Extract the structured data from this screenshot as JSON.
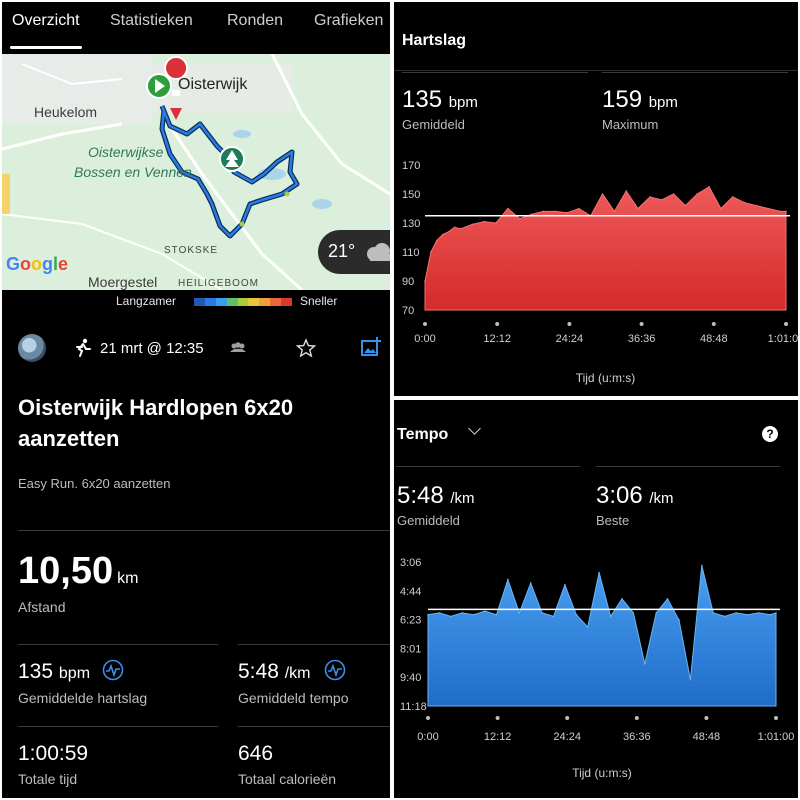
{
  "tabs": [
    {
      "label": "Overzicht"
    },
    {
      "label": "Statistieken"
    },
    {
      "label": "Ronden"
    },
    {
      "label": "Grafieken"
    }
  ],
  "map": {
    "labels": {
      "town1": "Oisterwijk",
      "town2": "Heukelom",
      "park1": "Oisterwijkse",
      "park2": "Bossen en Vennen",
      "town3": "Moergestel",
      "hamlet1": "STOKSKE",
      "hamlet2": "HEILIGEBOOM"
    },
    "google": "Google",
    "temperature": "21°",
    "legend_slow": "Langzamer",
    "legend_fast": "Sneller",
    "legend_colors": [
      "#1f5ab8",
      "#2c7be5",
      "#3aa0e8",
      "#5fc26b",
      "#a8cf3b",
      "#e8c53a",
      "#f0a03a",
      "#ec6a34",
      "#d93a30"
    ]
  },
  "activity": {
    "date": "21 mrt @ 12:35",
    "title": "Oisterwijk Hardlopen 6x20 aanzetten",
    "subtitle": "Easy Run. 6x20 aanzetten",
    "distance_value": "10,50",
    "distance_unit": "km",
    "distance_label": "Afstand",
    "hr_value": "135",
    "hr_unit": "bpm",
    "hr_label": "Gemiddelde hartslag",
    "pace_value": "5:48",
    "pace_unit": "/km",
    "pace_label": "Gemiddeld tempo",
    "time_value": "1:00:59",
    "time_label": "Totale tijd",
    "cal_value": "646",
    "cal_label": "Totaal calorieën"
  },
  "heart_rate": {
    "title": "Hartslag",
    "avg_value": "135",
    "avg_unit": "bpm",
    "avg_label": "Gemiddeld",
    "max_value": "159",
    "max_unit": "bpm",
    "max_label": "Maximum"
  },
  "tempo": {
    "title": "Tempo",
    "avg_value": "5:48",
    "avg_unit": "/km",
    "avg_label": "Gemiddeld",
    "best_value": "3:06",
    "best_unit": "/km",
    "best_label": "Beste"
  },
  "chart_data": [
    {
      "type": "area",
      "title": "Hartslag",
      "xlabel": "Tijd (u:m:s)",
      "ylabel": "",
      "x_tick_labels": [
        "0:00",
        "12:12",
        "24:24",
        "36:36",
        "48:48",
        "1:01:00"
      ],
      "y_tick_labels": [
        "170",
        "150",
        "130",
        "110",
        "90",
        "70"
      ],
      "ylim": [
        70,
        170
      ],
      "average": 135,
      "color": "#e43b3b",
      "series": [
        {
          "x": [
            0,
            1,
            2,
            3,
            4,
            5,
            6,
            8,
            10,
            12,
            14,
            16,
            18,
            20,
            22,
            24,
            26,
            28,
            30,
            32,
            34,
            36,
            38,
            40,
            42,
            44,
            46,
            48,
            50,
            52,
            54,
            56,
            58,
            60,
            61
          ],
          "values": [
            90,
            110,
            118,
            122,
            124,
            127,
            126,
            129,
            131,
            130,
            140,
            133,
            136,
            138,
            138,
            137,
            140,
            135,
            150,
            138,
            152,
            140,
            148,
            146,
            150,
            142,
            150,
            155,
            140,
            148,
            144,
            142,
            140,
            138,
            138
          ]
        }
      ]
    },
    {
      "type": "area",
      "title": "Tempo",
      "xlabel": "Tijd (u:m:s)",
      "ylabel": "",
      "x_tick_labels": [
        "0:00",
        "12:12",
        "24:24",
        "36:36",
        "48:48",
        "1:01:00"
      ],
      "y_tick_labels": [
        "3:06",
        "4:44",
        "6:23",
        "8:01",
        "9:40",
        "11:18"
      ],
      "ylim_min_per_km": [
        3.1,
        11.3
      ],
      "average_min_per_km": 5.8,
      "color": "#2f86e0",
      "series": [
        {
          "x": [
            0,
            2,
            4,
            6,
            8,
            10,
            12,
            14,
            16,
            18,
            20,
            22,
            24,
            26,
            28,
            30,
            32,
            34,
            36,
            38,
            40,
            42,
            44,
            46,
            48,
            50,
            52,
            54,
            56,
            58,
            60,
            61
          ],
          "values_min_per_km": [
            6.1,
            6.0,
            6.2,
            6.0,
            6.1,
            5.9,
            6.1,
            4.1,
            6.0,
            4.3,
            6.0,
            6.2,
            4.4,
            6.1,
            6.8,
            3.7,
            6.2,
            5.2,
            6.0,
            8.9,
            6.0,
            5.2,
            6.4,
            9.8,
            3.3,
            6.0,
            6.2,
            6.0,
            6.1,
            6.0,
            6.1,
            6.0
          ]
        }
      ]
    }
  ]
}
